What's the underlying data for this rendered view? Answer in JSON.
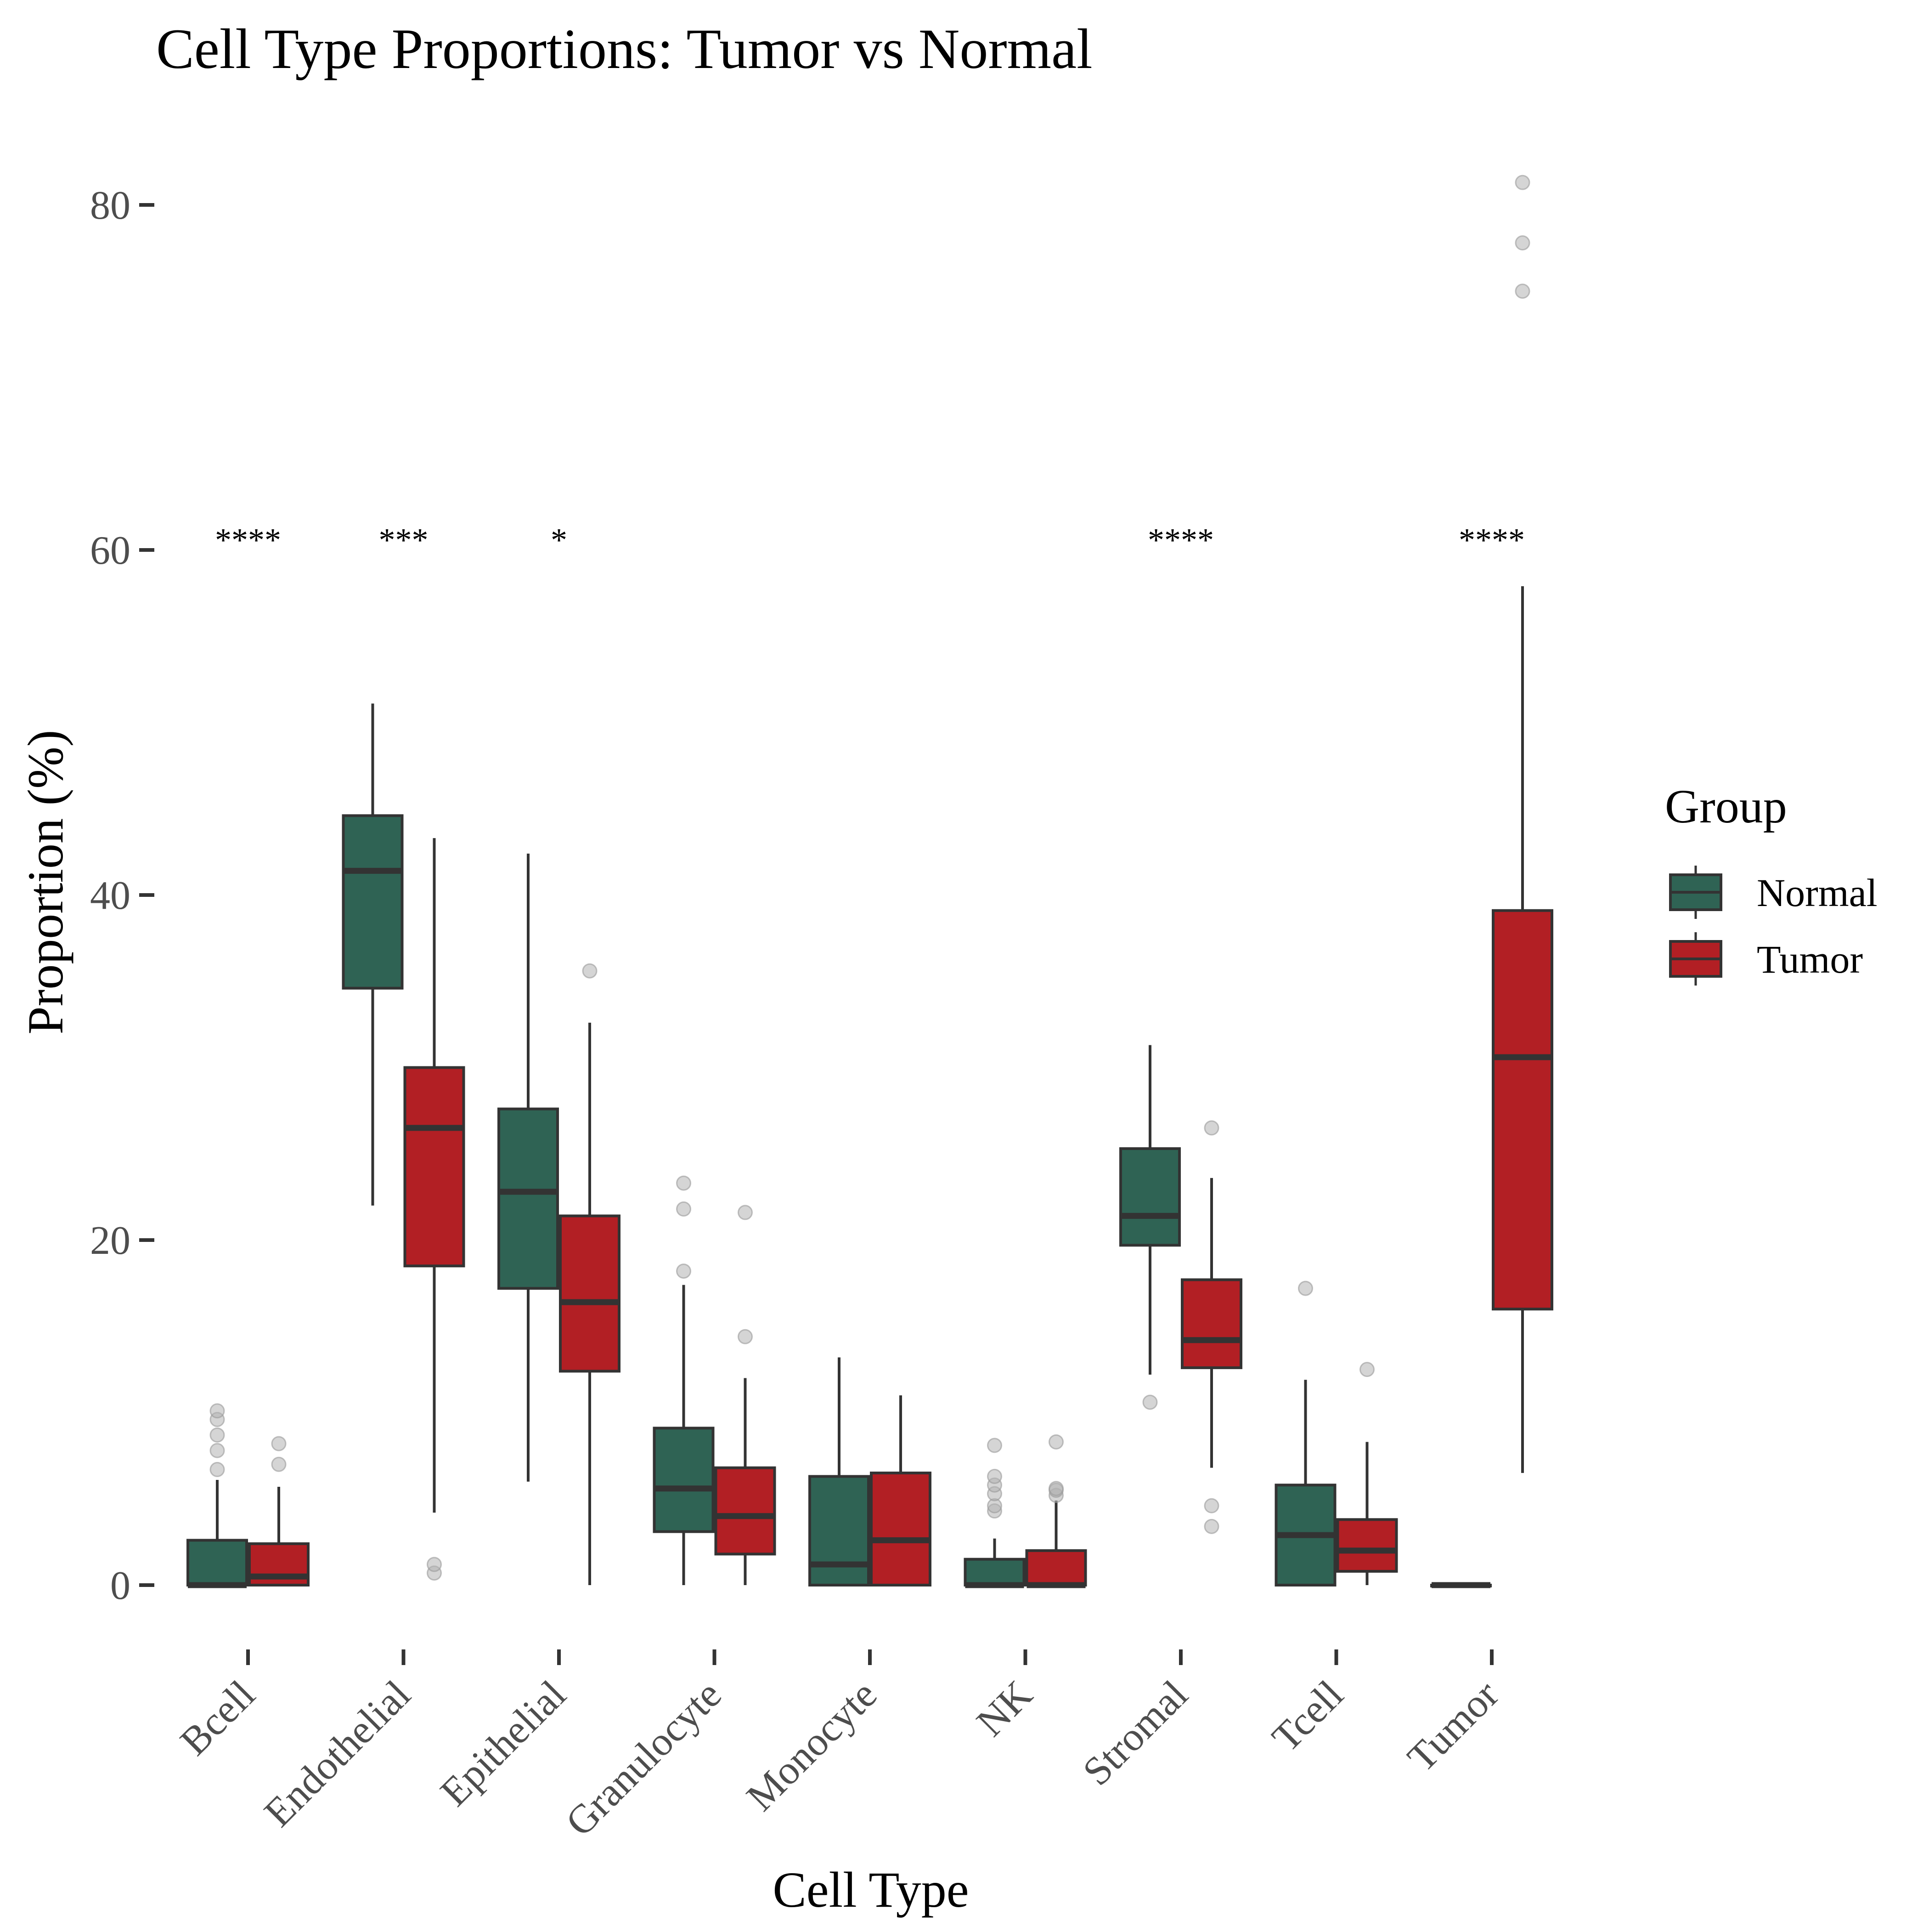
{
  "chart_data": {
    "type": "box",
    "title": "Cell Type Proportions: Tumor vs Normal",
    "xlabel": "Cell Type",
    "ylabel": "Proportion (%)",
    "y_ticks": [
      0,
      20,
      40,
      60,
      80
    ],
    "ylim": [
      -4,
      86
    ],
    "grid": false,
    "legend": {
      "title": "Group",
      "position": "right",
      "entries": [
        {
          "name": "Normal",
          "color": "#2f6354"
        },
        {
          "name": "Tumor",
          "color": "#b21f24"
        }
      ]
    },
    "categories": [
      "Bcell",
      "Endothelial",
      "Epithelial",
      "Granulocyte",
      "Monocyte",
      "NK",
      "Stromal",
      "Tcell",
      "Tumor"
    ],
    "significance": [
      "****",
      "***",
      "*",
      "",
      "",
      "",
      "****",
      "",
      "****"
    ],
    "significance_y": 61,
    "series": [
      {
        "name": "Normal",
        "color": "#2f6354",
        "boxes": [
          {
            "min": 0,
            "q1": 0,
            "median": 0,
            "q3": 2.6,
            "max": 6.1,
            "outliers": [
              6.7,
              7.8,
              8.7,
              9.6,
              10.1
            ]
          },
          {
            "min": 22,
            "q1": 34.6,
            "median": 41.4,
            "q3": 44.6,
            "max": 51.1,
            "outliers": []
          },
          {
            "min": 6,
            "q1": 17.2,
            "median": 22.8,
            "q3": 27.6,
            "max": 42.4,
            "outliers": []
          },
          {
            "min": 0,
            "q1": 3.1,
            "median": 5.6,
            "q3": 9.1,
            "max": 17.4,
            "outliers": [
              18.2,
              21.8,
              23.3
            ]
          },
          {
            "min": 0,
            "q1": 0,
            "median": 1.2,
            "q3": 6.3,
            "max": 13.2,
            "outliers": []
          },
          {
            "min": 0,
            "q1": 0,
            "median": 0,
            "q3": 1.5,
            "max": 2.7,
            "outliers": [
              4.3,
              4.6,
              5.3,
              5.8,
              6.3,
              8.1
            ]
          },
          {
            "min": 12.2,
            "q1": 19.7,
            "median": 21.4,
            "q3": 25.3,
            "max": 31.3,
            "outliers": [
              10.6
            ]
          },
          {
            "min": 0,
            "q1": 0,
            "median": 2.9,
            "q3": 5.8,
            "max": 11.9,
            "outliers": [
              17.2
            ]
          },
          {
            "min": 0,
            "q1": 0,
            "median": 0,
            "q3": 0,
            "max": 0,
            "outliers": []
          }
        ]
      },
      {
        "name": "Tumor",
        "color": "#b21f24",
        "boxes": [
          {
            "min": 0,
            "q1": 0,
            "median": 0.5,
            "q3": 2.4,
            "max": 5.7,
            "outliers": [
              7,
              8.2
            ]
          },
          {
            "min": 4.2,
            "q1": 18.5,
            "median": 26.5,
            "q3": 30,
            "max": 43.3,
            "outliers": [
              0.7,
              1.2
            ]
          },
          {
            "min": 0,
            "q1": 12.4,
            "median": 16.4,
            "q3": 21.4,
            "max": 32.6,
            "outliers": [
              35.6
            ]
          },
          {
            "min": 0,
            "q1": 1.8,
            "median": 4,
            "q3": 6.8,
            "max": 12,
            "outliers": [
              14.4,
              21.6
            ]
          },
          {
            "min": 0,
            "q1": 0,
            "median": 2.6,
            "q3": 6.5,
            "max": 11,
            "outliers": []
          },
          {
            "min": 0,
            "q1": 0,
            "median": 0,
            "q3": 2,
            "max": 4.9,
            "outliers": [
              5.2,
              5.5,
              5.6,
              8.3
            ]
          },
          {
            "min": 6.8,
            "q1": 12.6,
            "median": 14.2,
            "q3": 17.7,
            "max": 23.6,
            "outliers": [
              3.4,
              4.6,
              26.5
            ]
          },
          {
            "min": 0,
            "q1": 0.8,
            "median": 2,
            "q3": 3.8,
            "max": 8.3,
            "outliers": [
              12.5
            ]
          },
          {
            "min": 6.5,
            "q1": 16,
            "median": 30.6,
            "q3": 39.1,
            "max": 57.9,
            "outliers": [
              75,
              77.8,
              81.3
            ]
          }
        ]
      }
    ]
  }
}
